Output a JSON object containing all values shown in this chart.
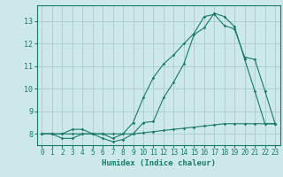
{
  "xlabel": "Humidex (Indice chaleur)",
  "background_color": "#cce8e8",
  "grid_color": "#aacccc",
  "line_color": "#1a7a6a",
  "xlim": [
    -0.5,
    23.5
  ],
  "ylim": [
    7.5,
    13.7
  ],
  "yticks": [
    8,
    9,
    10,
    11,
    12,
    13
  ],
  "xticks": [
    0,
    1,
    2,
    3,
    4,
    5,
    6,
    7,
    8,
    9,
    10,
    11,
    12,
    13,
    14,
    15,
    16,
    17,
    18,
    19,
    20,
    21,
    22,
    23
  ],
  "line1_x": [
    0,
    1,
    2,
    3,
    4,
    5,
    6,
    7,
    8,
    9,
    10,
    11,
    12,
    13,
    14,
    15,
    16,
    17,
    18,
    19,
    20,
    21,
    22,
    23
  ],
  "line1_y": [
    8.0,
    8.0,
    8.0,
    8.0,
    8.0,
    8.0,
    8.0,
    8.0,
    8.0,
    8.0,
    8.05,
    8.1,
    8.15,
    8.2,
    8.25,
    8.3,
    8.35,
    8.4,
    8.45,
    8.45,
    8.45,
    8.45,
    8.45,
    8.45
  ],
  "line2_x": [
    0,
    1,
    2,
    3,
    4,
    5,
    6,
    7,
    8,
    9,
    10,
    11,
    12,
    13,
    14,
    15,
    16,
    17,
    18,
    19,
    20,
    21,
    22,
    23
  ],
  "line2_y": [
    8.0,
    8.0,
    7.8,
    7.8,
    8.0,
    8.0,
    7.8,
    7.65,
    7.75,
    8.0,
    8.5,
    8.55,
    9.6,
    10.3,
    11.1,
    12.4,
    12.7,
    13.35,
    13.2,
    12.75,
    11.3,
    9.9,
    8.45,
    8.45
  ],
  "line3_x": [
    0,
    1,
    2,
    3,
    4,
    5,
    6,
    7,
    8,
    9,
    10,
    11,
    12,
    13,
    14,
    15,
    16,
    17,
    18,
    19,
    20,
    21,
    22,
    23
  ],
  "line3_y": [
    8.0,
    8.0,
    8.0,
    8.2,
    8.2,
    8.0,
    8.0,
    7.8,
    8.0,
    8.5,
    9.6,
    10.5,
    11.1,
    11.5,
    12.0,
    12.45,
    13.2,
    13.3,
    12.8,
    12.65,
    11.4,
    11.3,
    9.9,
    8.45
  ]
}
